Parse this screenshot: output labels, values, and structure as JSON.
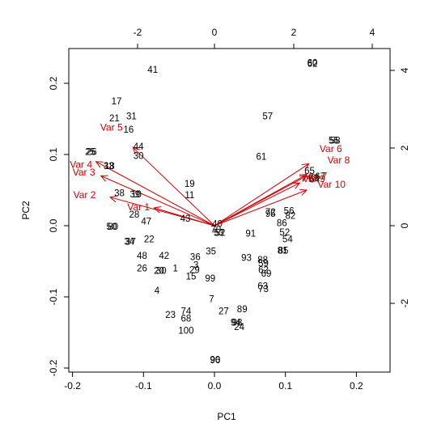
{
  "chart_data": {
    "type": "scatter",
    "subtype": "biplot",
    "title": "",
    "xlabel": "PC1",
    "ylabel": "PC2",
    "xlim": [
      -0.2,
      0.2
    ],
    "ylim": [
      -0.2,
      0.25
    ],
    "x_ticks": [
      "-0.2",
      "-0.1",
      "0.0",
      "0.1",
      "0.2"
    ],
    "y_ticks": [
      "-0.2",
      "-0.1",
      "0.0",
      "0.1",
      "0.2"
    ],
    "top_ticks": [
      "-2",
      "0",
      "2",
      "4"
    ],
    "right_ticks": [
      "-2",
      "0",
      "2",
      "4"
    ],
    "secondary_lim": [
      -4.3,
      4.3
    ],
    "grid": false,
    "legend": "none",
    "arrow_color": "#cc0000",
    "point_color": "#000000",
    "points": [
      {
        "label": "41",
        "x": -0.087,
        "y": 0.218
      },
      {
        "label": "60",
        "x": 0.138,
        "y": 0.228
      },
      {
        "label": "62",
        "x": 0.138,
        "y": 0.227
      },
      {
        "label": "17",
        "x": -0.138,
        "y": 0.174
      },
      {
        "label": "21",
        "x": -0.141,
        "y": 0.15
      },
      {
        "label": "31",
        "x": -0.117,
        "y": 0.153
      },
      {
        "label": "16",
        "x": -0.121,
        "y": 0.134
      },
      {
        "label": "57",
        "x": 0.075,
        "y": 0.153
      },
      {
        "label": "44",
        "x": -0.107,
        "y": 0.11
      },
      {
        "label": "30",
        "x": -0.107,
        "y": 0.097
      },
      {
        "label": "61",
        "x": 0.066,
        "y": 0.096
      },
      {
        "label": "25",
        "x": -0.175,
        "y": 0.103
      },
      {
        "label": "26",
        "x": -0.173,
        "y": 0.103
      },
      {
        "label": "55",
        "x": 0.168,
        "y": 0.119
      },
      {
        "label": "58",
        "x": 0.17,
        "y": 0.119
      },
      {
        "label": "33",
        "x": -0.149,
        "y": 0.083
      },
      {
        "label": "18",
        "x": -0.148,
        "y": 0.083
      },
      {
        "label": "19",
        "x": -0.035,
        "y": 0.058
      },
      {
        "label": "65",
        "x": 0.134,
        "y": 0.076
      },
      {
        "label": "67",
        "x": 0.149,
        "y": 0.068
      },
      {
        "label": "66",
        "x": 0.14,
        "y": 0.066
      },
      {
        "label": "64",
        "x": 0.141,
        "y": 0.064
      },
      {
        "label": "38",
        "x": -0.134,
        "y": 0.045
      },
      {
        "label": "39",
        "x": -0.112,
        "y": 0.043
      },
      {
        "label": "10",
        "x": -0.11,
        "y": 0.043
      },
      {
        "label": "11",
        "x": -0.035,
        "y": 0.042
      },
      {
        "label": "28",
        "x": -0.113,
        "y": 0.015
      },
      {
        "label": "72",
        "x": 0.079,
        "y": 0.018
      },
      {
        "label": "95",
        "x": 0.079,
        "y": 0.016
      },
      {
        "label": "56",
        "x": 0.105,
        "y": 0.02
      },
      {
        "label": "82",
        "x": 0.107,
        "y": 0.013
      },
      {
        "label": "86",
        "x": 0.095,
        "y": 0.003
      },
      {
        "label": "43",
        "x": -0.041,
        "y": 0.009
      },
      {
        "label": "47",
        "x": -0.096,
        "y": 0.005
      },
      {
        "label": "40",
        "x": 0.004,
        "y": 0.002
      },
      {
        "label": "70",
        "x": 0.002,
        "y": -0.006
      },
      {
        "label": "52",
        "x": 0.008,
        "y": -0.011
      },
      {
        "label": "53",
        "x": 0.006,
        "y": -0.011
      },
      {
        "label": "50",
        "x": -0.145,
        "y": -0.002
      },
      {
        "label": "80",
        "x": -0.143,
        "y": -0.002
      },
      {
        "label": "52",
        "x": 0.099,
        "y": -0.01
      },
      {
        "label": "91",
        "x": 0.051,
        "y": -0.012
      },
      {
        "label": "54",
        "x": 0.103,
        "y": -0.02
      },
      {
        "label": "22",
        "x": -0.092,
        "y": -0.02
      },
      {
        "label": "34",
        "x": -0.12,
        "y": -0.023
      },
      {
        "label": "37",
        "x": -0.118,
        "y": -0.023
      },
      {
        "label": "81",
        "x": 0.096,
        "y": -0.036
      },
      {
        "label": "85",
        "x": 0.097,
        "y": -0.036
      },
      {
        "label": "35",
        "x": -0.005,
        "y": -0.037
      },
      {
        "label": "48",
        "x": -0.102,
        "y": -0.043
      },
      {
        "label": "42",
        "x": -0.071,
        "y": -0.043
      },
      {
        "label": "36",
        "x": -0.027,
        "y": -0.045
      },
      {
        "label": "93",
        "x": 0.045,
        "y": -0.046
      },
      {
        "label": "88",
        "x": 0.068,
        "y": -0.049
      },
      {
        "label": "59",
        "x": 0.069,
        "y": -0.054
      },
      {
        "label": "3",
        "x": -0.026,
        "y": -0.056
      },
      {
        "label": "26",
        "x": -0.102,
        "y": -0.061
      },
      {
        "label": "20",
        "x": -0.078,
        "y": -0.064
      },
      {
        "label": "30",
        "x": -0.075,
        "y": -0.064
      },
      {
        "label": "1",
        "x": -0.055,
        "y": -0.061
      },
      {
        "label": "29",
        "x": -0.028,
        "y": -0.063
      },
      {
        "label": "62",
        "x": 0.069,
        "y": -0.063
      },
      {
        "label": "69",
        "x": 0.073,
        "y": -0.068
      },
      {
        "label": "15",
        "x": -0.033,
        "y": -0.072
      },
      {
        "label": "99",
        "x": -0.006,
        "y": -0.075
      },
      {
        "label": "63",
        "x": 0.068,
        "y": -0.086
      },
      {
        "label": "73",
        "x": 0.069,
        "y": -0.09
      },
      {
        "label": "4",
        "x": -0.081,
        "y": -0.092
      },
      {
        "label": "7",
        "x": -0.004,
        "y": -0.104
      },
      {
        "label": "74",
        "x": -0.04,
        "y": -0.121
      },
      {
        "label": "27",
        "x": 0.013,
        "y": -0.121
      },
      {
        "label": "89",
        "x": 0.039,
        "y": -0.118
      },
      {
        "label": "23",
        "x": -0.062,
        "y": -0.126
      },
      {
        "label": "68",
        "x": -0.04,
        "y": -0.131
      },
      {
        "label": "94",
        "x": 0.03,
        "y": -0.137
      },
      {
        "label": "98",
        "x": 0.032,
        "y": -0.137
      },
      {
        "label": "24",
        "x": 0.035,
        "y": -0.143
      },
      {
        "label": "100",
        "x": -0.04,
        "y": -0.148
      },
      {
        "label": "90",
        "x": 0.001,
        "y": -0.189
      },
      {
        "label": "96",
        "x": 0.001,
        "y": -0.19
      }
    ],
    "loadings": [
      {
        "label": "Var 1",
        "x": -0.085,
        "y": 0.025
      },
      {
        "label": "Var 2",
        "x": -0.147,
        "y": 0.04
      },
      {
        "label": "Var 3",
        "x": -0.16,
        "y": 0.07
      },
      {
        "label": "Var 4",
        "x": -0.167,
        "y": 0.09
      },
      {
        "label": "Var 5",
        "x": -0.115,
        "y": 0.11
      },
      {
        "label": "Var 6",
        "x": 0.133,
        "y": 0.087
      },
      {
        "label": "Var 7",
        "x": 0.13,
        "y": 0.072
      },
      {
        "label": "Var 8",
        "x": 0.13,
        "y": 0.07
      },
      {
        "label": "Var 9",
        "x": 0.12,
        "y": 0.06
      },
      {
        "label": "Var 10",
        "x": 0.13,
        "y": 0.05
      }
    ],
    "loading_labels": [
      {
        "label": "Var 1",
        "x": -0.107,
        "y": 0.025
      },
      {
        "label": "Var 2",
        "x": -0.183,
        "y": 0.042
      },
      {
        "label": "Var 3",
        "x": -0.184,
        "y": 0.074
      },
      {
        "label": "Var 4",
        "x": -0.188,
        "y": 0.085
      },
      {
        "label": "Var 5",
        "x": -0.145,
        "y": 0.137
      },
      {
        "label": "Var 6",
        "x": 0.164,
        "y": 0.107
      },
      {
        "label": "Var 7",
        "x": 0.143,
        "y": 0.069
      },
      {
        "label": "Var 8",
        "x": 0.175,
        "y": 0.091
      },
      {
        "label": "Var 9",
        "x": 0.14,
        "y": 0.065
      },
      {
        "label": "Var 10",
        "x": 0.165,
        "y": 0.057
      }
    ]
  }
}
